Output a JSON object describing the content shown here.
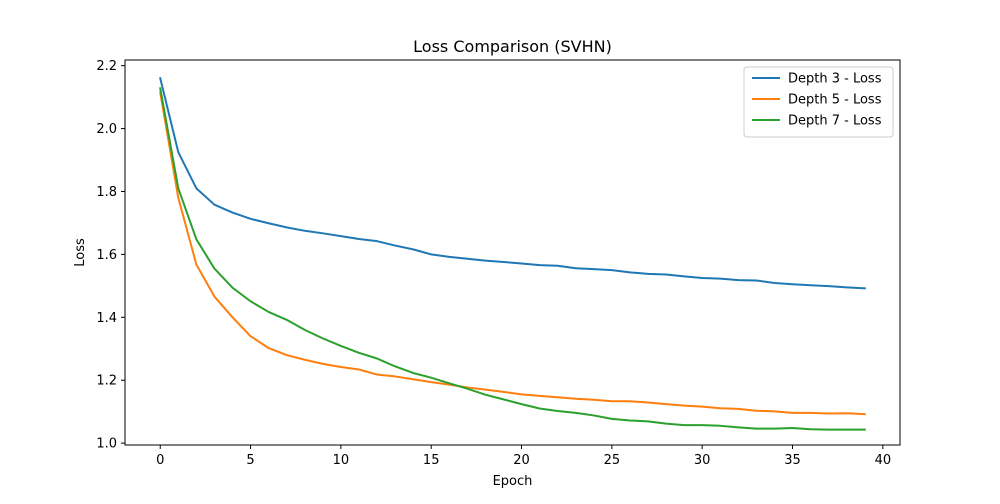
{
  "chart_data": {
    "type": "line",
    "title": "Loss Comparison (SVHN)",
    "xlabel": "Epoch",
    "ylabel": "Loss",
    "xlim": [
      -1.95,
      40.95
    ],
    "ylim": [
      0.994,
      2.218
    ],
    "xticks": [
      0,
      5,
      10,
      15,
      20,
      25,
      30,
      35,
      40
    ],
    "yticks": [
      1.0,
      1.2,
      1.4,
      1.6,
      1.8,
      2.0,
      2.2
    ],
    "xtick_labels": [
      "0",
      "5",
      "10",
      "15",
      "20",
      "25",
      "30",
      "35",
      "40"
    ],
    "ytick_labels": [
      "1.0",
      "1.2",
      "1.4",
      "1.6",
      "1.8",
      "2.0",
      "2.2"
    ],
    "grid": false,
    "legend_position": "top-right",
    "x": [
      0,
      1,
      2,
      3,
      4,
      5,
      6,
      7,
      8,
      9,
      10,
      11,
      12,
      13,
      14,
      15,
      16,
      17,
      18,
      19,
      20,
      21,
      22,
      23,
      24,
      25,
      26,
      27,
      28,
      29,
      30,
      31,
      32,
      33,
      34,
      35,
      36,
      37,
      38,
      39
    ],
    "series": [
      {
        "name": "Depth 3 - Loss",
        "color": "#1f77b4",
        "values": [
          2.16,
          1.925,
          1.81,
          1.758,
          1.733,
          1.713,
          1.699,
          1.686,
          1.675,
          1.667,
          1.658,
          1.649,
          1.642,
          1.628,
          1.616,
          1.6,
          1.592,
          1.586,
          1.58,
          1.576,
          1.571,
          1.566,
          1.564,
          1.556,
          1.553,
          1.55,
          1.543,
          1.538,
          1.536,
          1.53,
          1.525,
          1.523,
          1.518,
          1.517,
          1.509,
          1.505,
          1.502,
          1.499,
          1.495,
          1.492
        ]
      },
      {
        "name": "Depth 5 - Loss",
        "color": "#ff7f0e",
        "values": [
          2.115,
          1.78,
          1.568,
          1.466,
          1.4,
          1.34,
          1.302,
          1.28,
          1.265,
          1.252,
          1.242,
          1.234,
          1.218,
          1.212,
          1.203,
          1.194,
          1.186,
          1.177,
          1.17,
          1.163,
          1.155,
          1.15,
          1.146,
          1.141,
          1.138,
          1.133,
          1.133,
          1.129,
          1.124,
          1.119,
          1.116,
          1.111,
          1.109,
          1.103,
          1.101,
          1.096,
          1.096,
          1.094,
          1.095,
          1.092
        ]
      },
      {
        "name": "Depth 7 - Loss",
        "color": "#2ca02c",
        "values": [
          2.128,
          1.81,
          1.648,
          1.555,
          1.494,
          1.451,
          1.417,
          1.392,
          1.36,
          1.333,
          1.309,
          1.287,
          1.269,
          1.244,
          1.223,
          1.208,
          1.19,
          1.173,
          1.154,
          1.139,
          1.124,
          1.11,
          1.102,
          1.096,
          1.088,
          1.077,
          1.072,
          1.069,
          1.062,
          1.057,
          1.057,
          1.055,
          1.05,
          1.046,
          1.046,
          1.048,
          1.044,
          1.043,
          1.043,
          1.043
        ]
      }
    ]
  }
}
